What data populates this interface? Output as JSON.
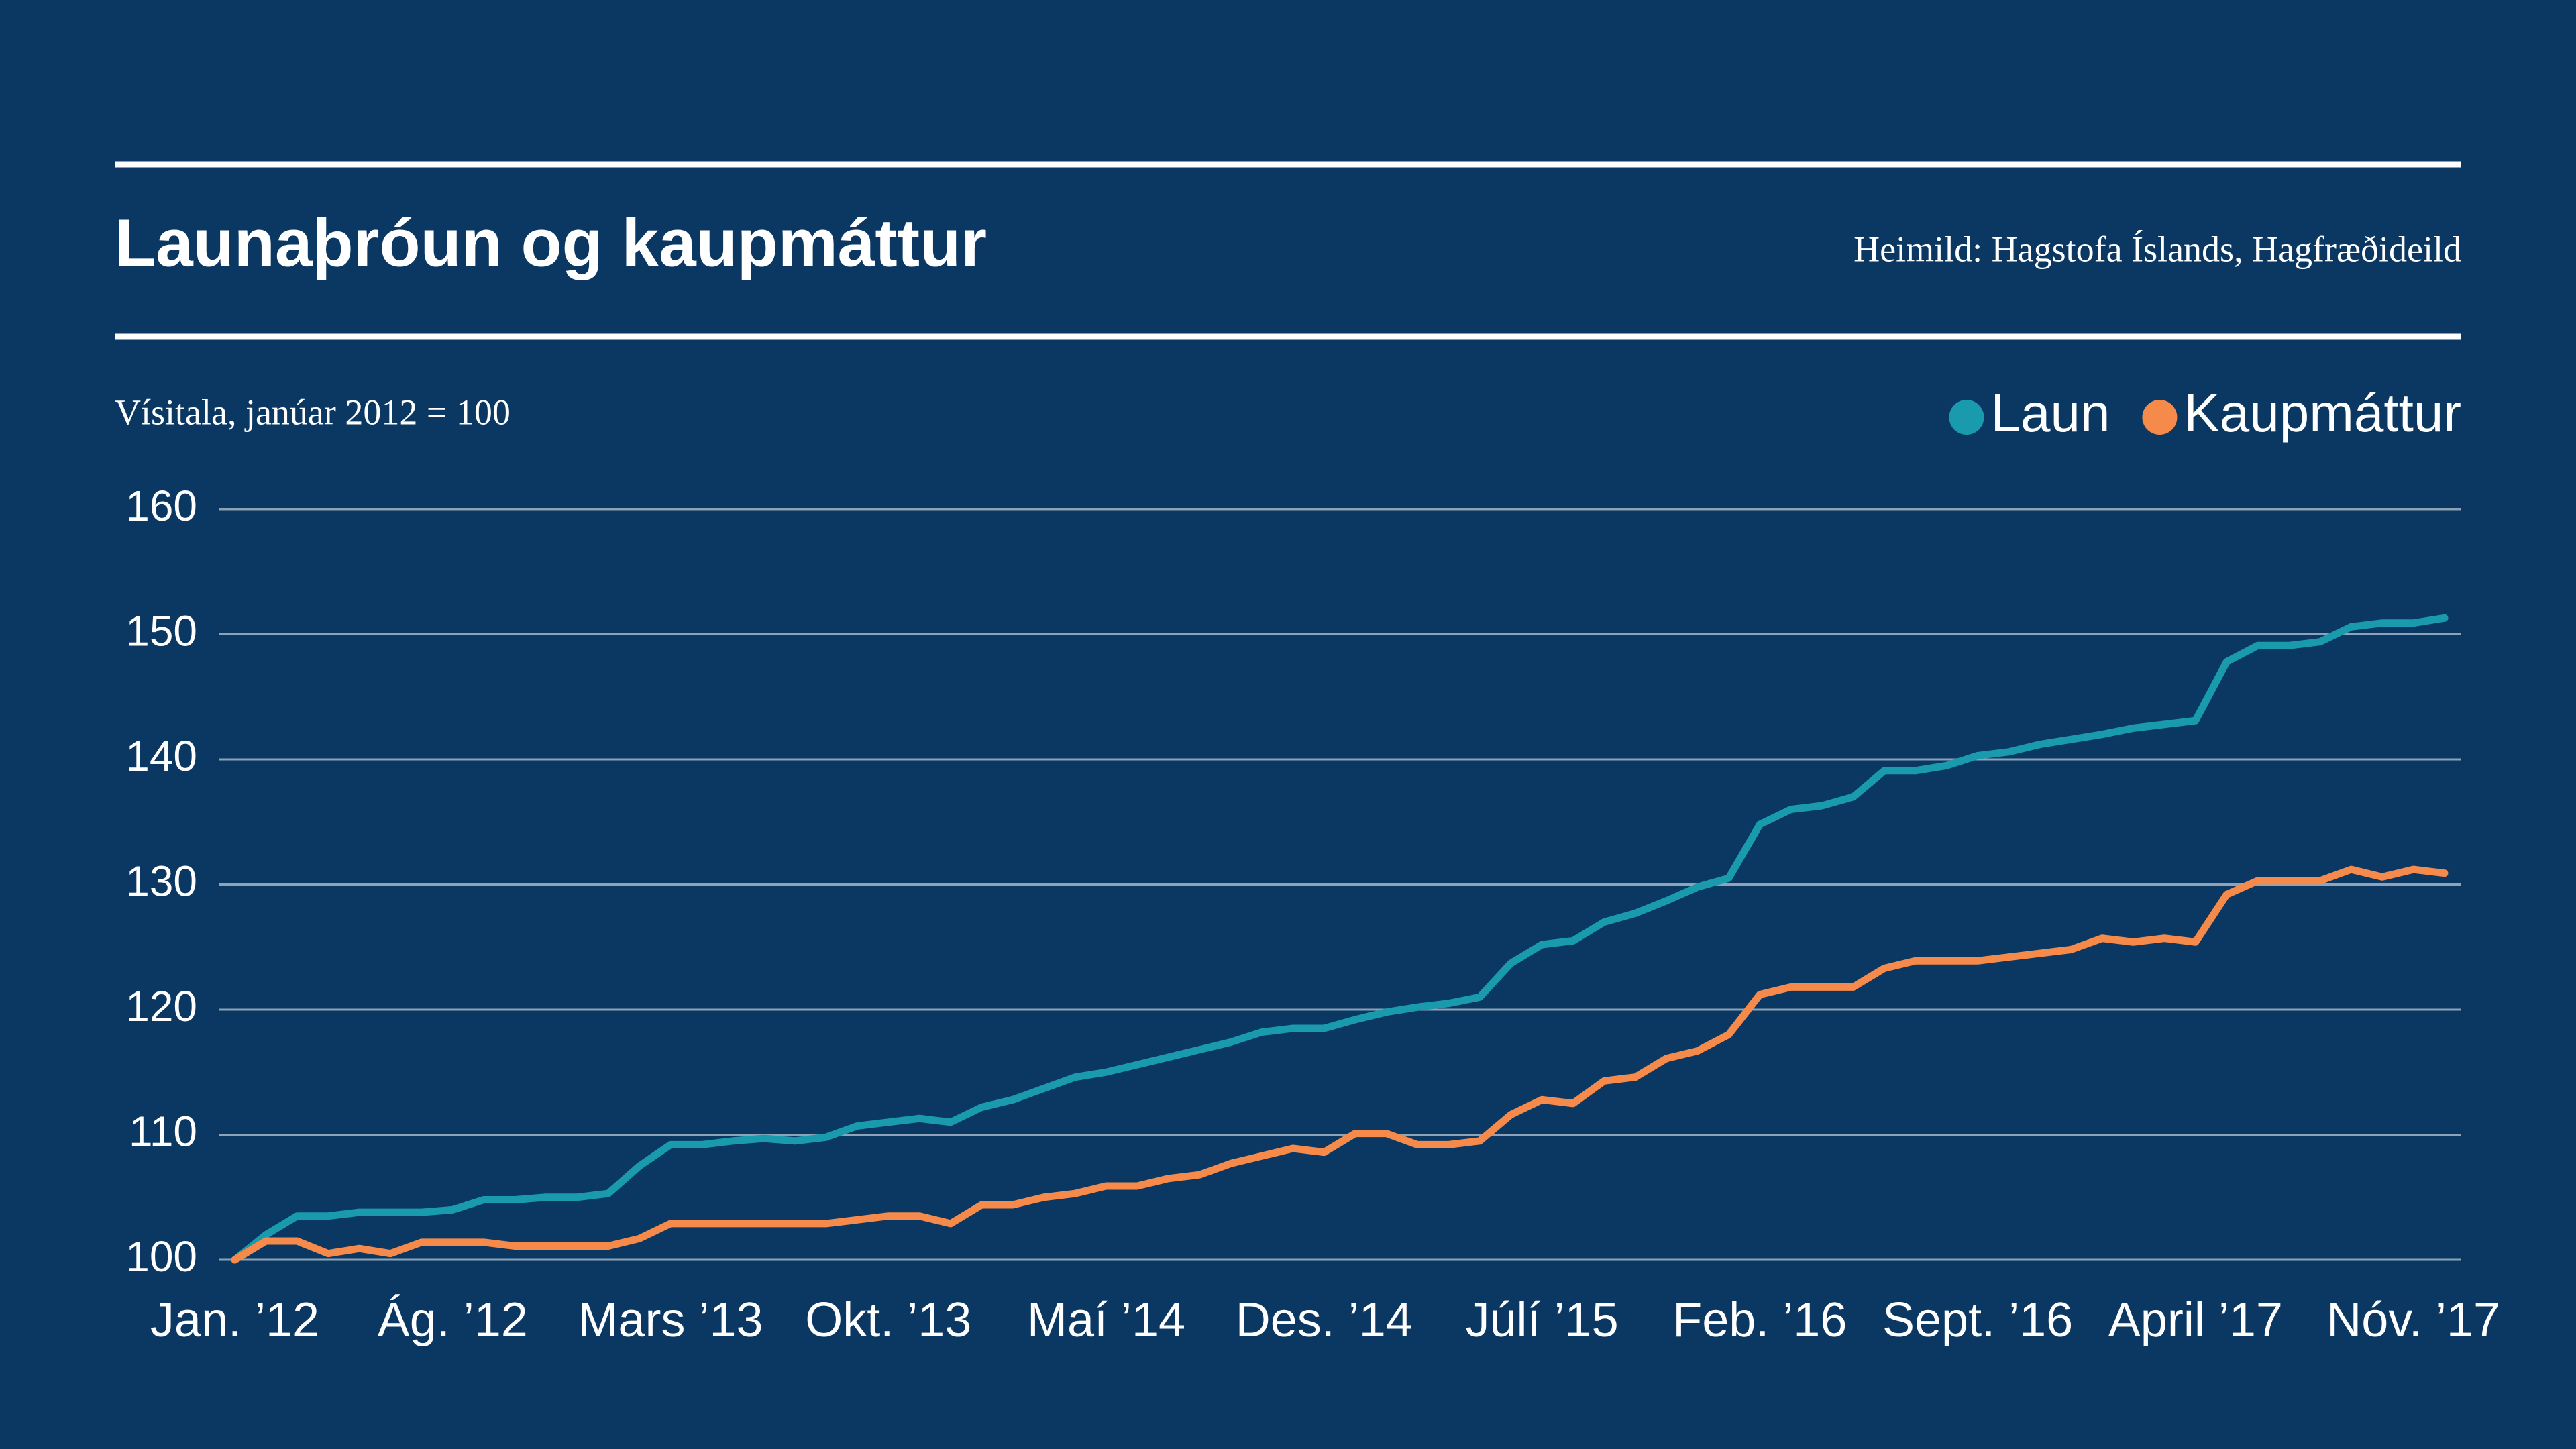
{
  "chart_data": {
    "type": "line",
    "title": "Launaþróun og kaupmáttur",
    "source": "Heimild: Hagstofa Íslands, Hagfræðideild",
    "subtitle": "Vísitala, janúar 2012 = 100",
    "categories": [
      "Jan. ’12",
      null,
      null,
      null,
      null,
      null,
      null,
      "Ág. ’12",
      null,
      null,
      null,
      null,
      null,
      null,
      "Mars ’13",
      null,
      null,
      null,
      null,
      null,
      null,
      "Okt. ’13",
      null,
      null,
      null,
      null,
      null,
      null,
      "Maí ’14",
      null,
      null,
      null,
      null,
      null,
      null,
      "Des. ’14",
      null,
      null,
      null,
      null,
      null,
      null,
      "Júlí ’15",
      null,
      null,
      null,
      null,
      null,
      null,
      "Feb. ’16",
      null,
      null,
      null,
      null,
      null,
      null,
      "Sept. ’16",
      null,
      null,
      null,
      null,
      null,
      null,
      "April ’17",
      null,
      null,
      null,
      null,
      null,
      null,
      "Nóv. ’17",
      null
    ],
    "series": [
      {
        "name": "Laun",
        "color": "#1a9bad",
        "values": [
          100,
          102,
          103.5,
          103.5,
          103.8,
          103.8,
          103.8,
          104,
          104.8,
          104.8,
          105,
          105,
          105.3,
          107.5,
          109.2,
          109.2,
          109.5,
          109.7,
          109.5,
          109.8,
          110.7,
          111,
          111.3,
          111,
          112.2,
          112.8,
          113.7,
          114.6,
          115,
          115.6,
          116.2,
          116.8,
          117.4,
          118.2,
          118.5,
          118.5,
          119.2,
          119.8,
          120.2,
          120.5,
          121,
          123.7,
          125.2,
          125.5,
          127,
          127.7,
          128.7,
          129.8,
          130.5,
          134.8,
          136,
          136.3,
          137,
          139.1,
          139.1,
          139.5,
          140.3,
          140.6,
          141.2,
          141.6,
          142,
          142.5,
          142.8,
          143.1,
          147.8,
          149.1,
          149.1,
          149.4,
          150.6,
          150.9,
          150.9,
          151.3
        ]
      },
      {
        "name": "Kaupmáttur",
        "color": "#f58a4b",
        "values": [
          100,
          101.5,
          101.5,
          100.5,
          100.9,
          100.5,
          101.4,
          101.4,
          101.4,
          101.1,
          101.1,
          101.1,
          101.1,
          101.7,
          102.9,
          102.9,
          102.9,
          102.9,
          102.9,
          102.9,
          103.2,
          103.5,
          103.5,
          102.9,
          104.4,
          104.4,
          105,
          105.3,
          105.9,
          105.9,
          106.5,
          106.8,
          107.7,
          108.3,
          108.9,
          108.6,
          110.1,
          110.1,
          109.2,
          109.2,
          109.5,
          111.6,
          112.8,
          112.5,
          114.3,
          114.6,
          116.1,
          116.7,
          118,
          121.2,
          121.8,
          121.8,
          121.8,
          123.3,
          123.9,
          123.9,
          123.9,
          124.2,
          124.5,
          124.8,
          125.7,
          125.4,
          125.7,
          125.4,
          129.2,
          130.3,
          130.3,
          130.3,
          131.2,
          130.6,
          131.2,
          130.9
        ]
      }
    ],
    "ylim": [
      100,
      160
    ],
    "yticks": [
      100,
      110,
      120,
      130,
      140,
      150,
      160
    ],
    "grid": true,
    "legend": "top-right"
  }
}
